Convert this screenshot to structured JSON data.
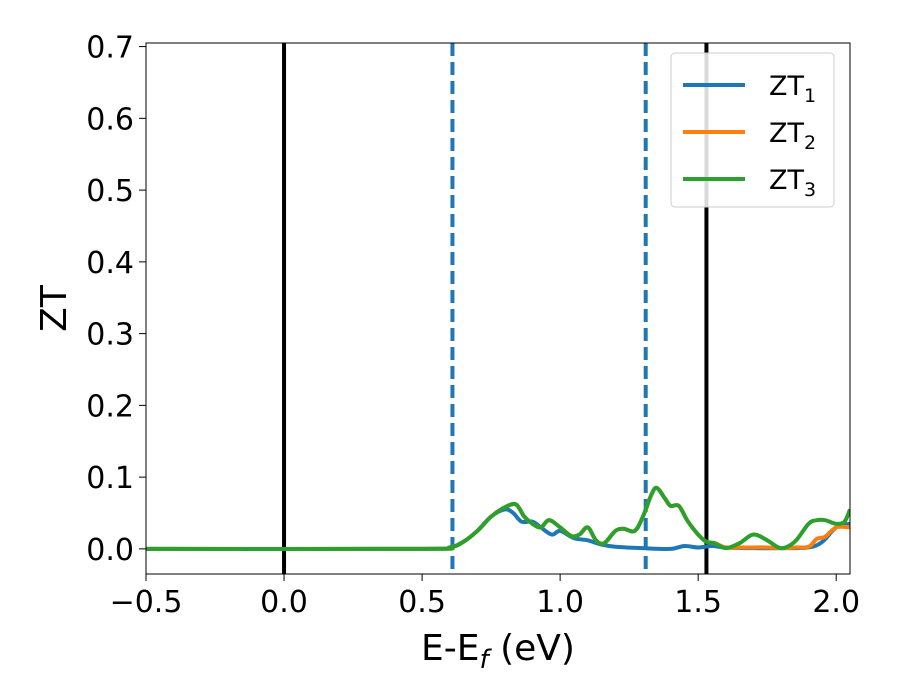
{
  "chart_data": {
    "type": "line",
    "xlabel": "E-E",
    "xlabel_sub": "f",
    "xlabel_unit": " (eV)",
    "ylabel": "ZT",
    "xlim": [
      -0.5,
      2.05
    ],
    "ylim": [
      -0.035,
      0.705
    ],
    "xticks": [
      -0.5,
      0.0,
      0.5,
      1.0,
      1.5,
      2.0
    ],
    "xtick_labels": [
      "−0.5",
      "0.0",
      "0.5",
      "1.0",
      "1.5",
      "2.0"
    ],
    "yticks": [
      0.0,
      0.1,
      0.2,
      0.3,
      0.4,
      0.5,
      0.6,
      0.7
    ],
    "ytick_labels": [
      "0.0",
      "0.1",
      "0.2",
      "0.3",
      "0.4",
      "0.5",
      "0.6",
      "0.7"
    ],
    "grid": false,
    "legend_position": "top-right",
    "vlines": [
      {
        "x": 0.0,
        "style": "solid",
        "color": "#000000"
      },
      {
        "x": 0.61,
        "style": "dashed",
        "color": "#1f77b4"
      },
      {
        "x": 1.31,
        "style": "dashed",
        "color": "#1f77b4"
      },
      {
        "x": 1.53,
        "style": "solid",
        "color": "#000000"
      }
    ],
    "series": [
      {
        "name": "ZT",
        "name_sub": "1",
        "color": "#1f77b4",
        "x": [
          -0.5,
          0.5,
          0.6,
          0.65,
          0.7,
          0.75,
          0.8,
          0.83,
          0.86,
          0.9,
          0.93,
          0.97,
          1.0,
          1.05,
          1.1,
          1.15,
          1.2,
          1.3,
          1.4,
          1.45,
          1.5,
          1.55,
          1.6,
          1.7,
          1.8,
          1.9,
          1.95,
          2.0,
          2.05
        ],
        "y": [
          0.0,
          0.0,
          0.002,
          0.01,
          0.025,
          0.045,
          0.055,
          0.05,
          0.038,
          0.038,
          0.03,
          0.02,
          0.025,
          0.015,
          0.012,
          0.006,
          0.003,
          0.001,
          0.0,
          0.004,
          0.002,
          0.004,
          0.002,
          0.001,
          0.001,
          0.002,
          0.01,
          0.03,
          0.035
        ]
      },
      {
        "name": "ZT",
        "name_sub": "2",
        "color": "#ff7f0e",
        "x": [
          -0.5,
          0.5,
          0.6,
          0.65,
          0.7,
          0.75,
          0.8,
          0.84,
          0.87,
          0.9,
          0.93,
          0.96,
          1.0,
          1.04,
          1.07,
          1.1,
          1.13,
          1.16,
          1.2,
          1.23,
          1.27,
          1.3,
          1.33,
          1.35,
          1.38,
          1.4,
          1.43,
          1.46,
          1.5,
          1.53,
          1.56,
          1.6,
          1.65,
          1.7,
          1.75,
          1.8,
          1.85,
          1.9,
          1.93,
          1.96,
          2.0,
          2.05
        ],
        "y": [
          0.0,
          0.0,
          0.002,
          0.01,
          0.025,
          0.045,
          0.058,
          0.062,
          0.045,
          0.035,
          0.03,
          0.04,
          0.03,
          0.018,
          0.02,
          0.03,
          0.012,
          0.008,
          0.025,
          0.028,
          0.025,
          0.045,
          0.075,
          0.085,
          0.07,
          0.06,
          0.06,
          0.04,
          0.02,
          0.01,
          0.008,
          0.002,
          0.002,
          0.002,
          0.002,
          0.001,
          0.002,
          0.003,
          0.014,
          0.017,
          0.03,
          0.03
        ]
      },
      {
        "name": "ZT",
        "name_sub": "3",
        "color": "#2ca02c",
        "x": [
          -0.5,
          0.5,
          0.6,
          0.65,
          0.7,
          0.75,
          0.8,
          0.84,
          0.87,
          0.9,
          0.93,
          0.96,
          1.0,
          1.04,
          1.07,
          1.1,
          1.13,
          1.16,
          1.2,
          1.23,
          1.27,
          1.3,
          1.33,
          1.35,
          1.38,
          1.4,
          1.43,
          1.46,
          1.5,
          1.53,
          1.56,
          1.6,
          1.65,
          1.7,
          1.75,
          1.8,
          1.85,
          1.9,
          1.93,
          1.96,
          2.0,
          2.03,
          2.05
        ],
        "y": [
          0.0,
          0.0,
          0.002,
          0.01,
          0.025,
          0.045,
          0.058,
          0.062,
          0.045,
          0.035,
          0.03,
          0.04,
          0.03,
          0.018,
          0.02,
          0.03,
          0.012,
          0.008,
          0.025,
          0.028,
          0.025,
          0.045,
          0.075,
          0.085,
          0.07,
          0.06,
          0.06,
          0.04,
          0.02,
          0.01,
          0.008,
          0.001,
          0.008,
          0.02,
          0.012,
          0.001,
          0.01,
          0.035,
          0.04,
          0.04,
          0.035,
          0.038,
          0.055
        ]
      }
    ]
  }
}
